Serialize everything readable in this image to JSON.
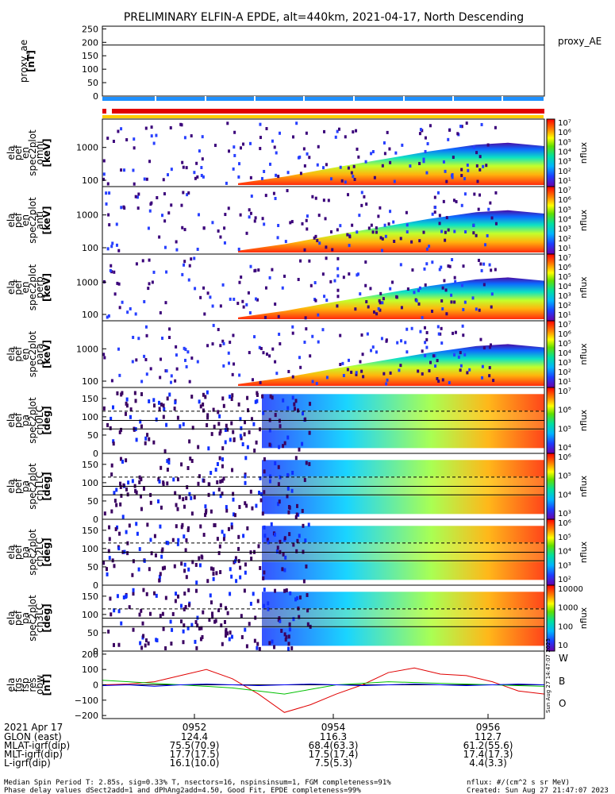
{
  "title": "PRELIMINARY ELFIN-A EPDE, alt=440km, 2021-04-17, North Descending",
  "colors": {
    "blue_bar": "#1e90ff",
    "red_bar": "#e00000",
    "yellow_bar": "#ffcc00",
    "line_red": "#e00000",
    "line_green": "#00c000",
    "line_blue": "#0000ff"
  },
  "chart_data": [
    {
      "type": "line",
      "panel": "proxy_ae",
      "ylabel": [
        "proxy_ae",
        "[nT]"
      ],
      "right_label": "proxy_AE",
      "yticks": [
        "250",
        "200",
        "150",
        "100",
        "50",
        "0"
      ],
      "ylim": [
        0,
        260
      ],
      "series": [
        {
          "values": [
            190,
            190
          ]
        }
      ]
    },
    {
      "type": "heatmap",
      "panel": "energy spectrogram omni",
      "ylabel": [
        "ela",
        "pef",
        "en",
        "spec2plot",
        "omni",
        "[keV]"
      ],
      "yticks": [
        "1000",
        "100"
      ],
      "scale": "log",
      "colorbar": {
        "label": "nflux",
        "ticks": [
          "10⁷",
          "10⁶",
          "10⁵",
          "10⁴",
          "10³",
          "10²",
          "10¹"
        ]
      }
    },
    {
      "type": "heatmap",
      "panel": "energy spectrogram anti",
      "ylabel": [
        "ela",
        "pef",
        "en",
        "spec2plot",
        "anti",
        "[keV]"
      ],
      "yticks": [
        "1000",
        "100"
      ],
      "scale": "log",
      "colorbar": {
        "label": "nflux",
        "ticks": [
          "10⁷",
          "10⁶",
          "10⁵",
          "10⁴",
          "10³",
          "10²",
          "10¹"
        ]
      }
    },
    {
      "type": "heatmap",
      "panel": "energy spectrogram perp",
      "ylabel": [
        "ela",
        "pef",
        "en",
        "spec2plot",
        "perp",
        "[keV]"
      ],
      "yticks": [
        "1000",
        "100"
      ],
      "scale": "log",
      "colorbar": {
        "label": "nflux",
        "ticks": [
          "10⁷",
          "10⁶",
          "10⁵",
          "10⁴",
          "10³",
          "10²",
          "10¹"
        ]
      }
    },
    {
      "type": "heatmap",
      "panel": "energy spectrogram para",
      "ylabel": [
        "ela",
        "pef",
        "en",
        "spec2plot",
        "para",
        "[keV]"
      ],
      "yticks": [
        "1000",
        "100"
      ],
      "scale": "log",
      "colorbar": {
        "label": "nflux",
        "ticks": [
          "10⁷",
          "10⁶",
          "10⁵",
          "10⁴",
          "10³",
          "10²",
          "10¹"
        ]
      }
    },
    {
      "type": "heatmap",
      "panel": "pitch angle ch0LC",
      "ylabel": [
        "ela",
        "pef",
        "pa",
        "spec2plot",
        "ch0LC",
        "[deg]"
      ],
      "yticks": [
        "150",
        "100",
        "50",
        "0"
      ],
      "ylim": [
        0,
        180
      ],
      "colorbar": {
        "label": "nflux",
        "ticks": [
          "10⁷",
          "10⁶",
          "10⁵",
          "10⁴"
        ]
      }
    },
    {
      "type": "heatmap",
      "panel": "pitch angle ch1LC",
      "ylabel": [
        "ela",
        "pef",
        "pa",
        "spec2plot",
        "ch1LC",
        "[deg]"
      ],
      "yticks": [
        "150",
        "100",
        "50",
        "0"
      ],
      "ylim": [
        0,
        180
      ],
      "colorbar": {
        "label": "nflux",
        "ticks": [
          "10⁶",
          "10⁵",
          "10⁴",
          "10³"
        ]
      }
    },
    {
      "type": "heatmap",
      "panel": "pitch angle ch2LC",
      "ylabel": [
        "ela",
        "pef",
        "pa",
        "spec2plot",
        "ch2LC",
        "[deg]"
      ],
      "yticks": [
        "150",
        "100",
        "50",
        "0"
      ],
      "ylim": [
        0,
        180
      ],
      "colorbar": {
        "label": "nflux",
        "ticks": [
          "10⁶",
          "10⁵",
          "10⁴",
          "10³",
          "10²"
        ]
      }
    },
    {
      "type": "heatmap",
      "panel": "pitch angle ch3LC",
      "ylabel": [
        "ela",
        "pef",
        "pa",
        "spec2plot",
        "ch3LC",
        "[deg]"
      ],
      "yticks": [
        "150",
        "100",
        "50",
        "0"
      ],
      "ylim": [
        0,
        180
      ],
      "colorbar": {
        "label": "nflux",
        "ticks": [
          "10000",
          "1000",
          "100",
          "10"
        ]
      }
    },
    {
      "type": "line",
      "panel": "fgs residual",
      "ylabel": [
        "ela",
        "fgs",
        "fsp",
        "res",
        "obw",
        "[nT]"
      ],
      "yticks": [
        "200",
        "100",
        "0",
        "−100",
        "−200"
      ],
      "ylim": [
        -220,
        220
      ],
      "legend": [
        "W",
        "B",
        "O"
      ],
      "series": [
        {
          "name": "W",
          "values": [
            0,
            5,
            20,
            60,
            100,
            40,
            -60,
            -180,
            -130,
            -60,
            0,
            80,
            110,
            70,
            60,
            20,
            -40,
            -60
          ]
        },
        {
          "name": "B",
          "values": [
            30,
            20,
            10,
            0,
            -10,
            -20,
            -40,
            -60,
            -30,
            0,
            10,
            20,
            15,
            10,
            5,
            0,
            -5,
            -10
          ]
        },
        {
          "name": "O",
          "values": [
            -5,
            0,
            -10,
            0,
            5,
            0,
            -5,
            0,
            5,
            0,
            -5,
            0,
            5,
            0,
            -5,
            0,
            5,
            0
          ]
        }
      ]
    }
  ],
  "side_stamp": "Sun Aug 27 14:47:07 2023",
  "time_axis": {
    "label": "2021 Apr 17",
    "ticks": [
      "0952",
      "0954",
      "0956"
    ]
  },
  "ephemeris": {
    "rows": [
      {
        "label": "GLON (east)",
        "values": [
          "124.4",
          "116.3",
          "112.7"
        ]
      },
      {
        "label": "MLAT-igrf(dip)",
        "values": [
          "75.5(70.9)",
          "68.4(63.3)",
          "61.2(55.6)"
        ]
      },
      {
        "label": "MLT-igrf(dip)",
        "values": [
          "17.7(17.5)",
          "17.5(17.4)",
          "17.4(17.3)"
        ]
      },
      {
        "label": "L-igrf(dip)",
        "values": [
          "16.1(10.0)",
          "7.5(5.3)",
          "4.4(3.3)"
        ]
      }
    ]
  },
  "footer": {
    "line1": "Median Spin Period T: 2.85s, sig=0.33% T, nsectors=16, nspinsinsum=1, FGM completeness=91%",
    "line2": "Phase delay values dSect2add=1 and dPhAng2add=4.50, Good Fit, EPDE completeness=99%",
    "units": "nflux: #/(cm^2 s sr MeV)",
    "created": "Created: Sun Aug 27 21:47:07 2023"
  }
}
